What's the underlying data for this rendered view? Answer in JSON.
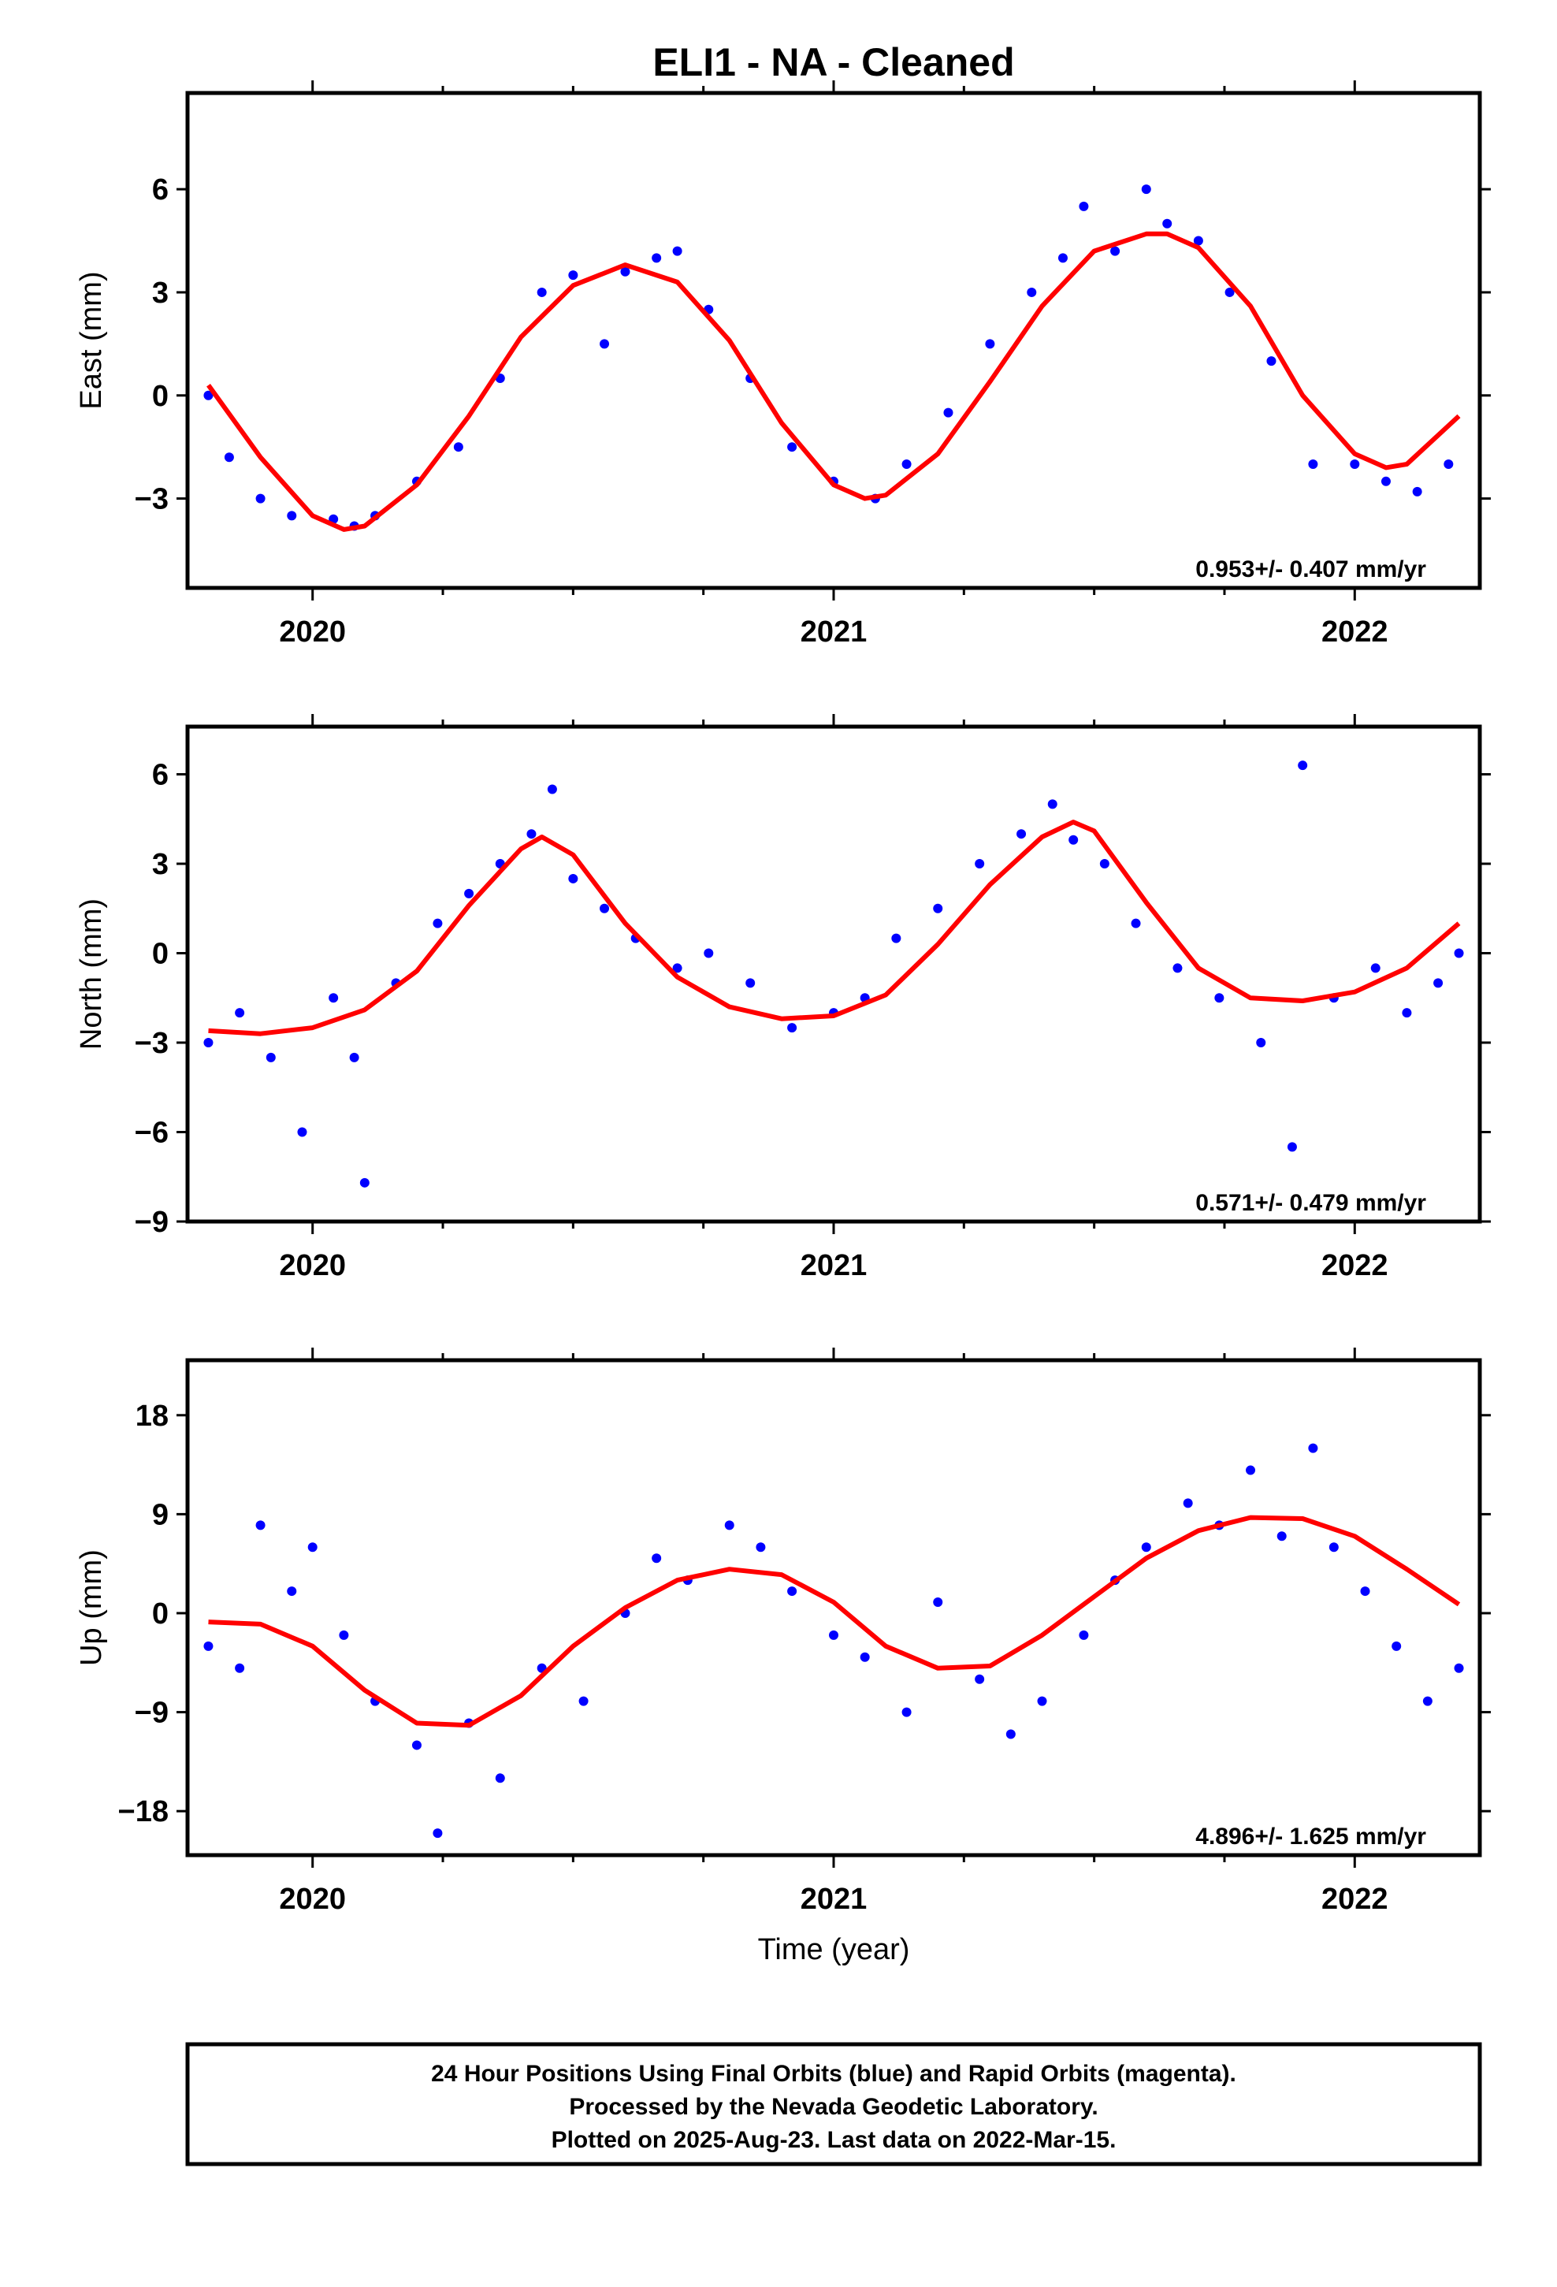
{
  "title": "ELI1  - NA - Cleaned",
  "xlabel": "Time (year)",
  "caption": [
    "24 Hour Positions Using Final Orbits (blue) and Rapid Orbits (magenta).",
    "Processed by the Nevada Geodetic Laboratory.",
    "Plotted on 2025-Aug-23. Last data on 2022-Mar-15."
  ],
  "colors": {
    "points": "#0000ff",
    "fit": "#ff0000",
    "frame": "#000000"
  },
  "chart_data": [
    {
      "type": "scatter",
      "ylabel": "East (mm)",
      "xlim": [
        2019.76,
        2022.24
      ],
      "ylim": [
        -5.6,
        8.8
      ],
      "x_ticks": [
        2020,
        2021,
        2022
      ],
      "y_ticks": [
        -3,
        0,
        3,
        6
      ],
      "y_tick_labels": [
        "−3",
        "0",
        "3",
        "6"
      ],
      "rate_label": "0.953+/- 0.407 mm/yr",
      "series": [
        {
          "type": "scatter",
          "x": [
            2019.8,
            2019.84,
            2019.9,
            2019.96,
            2020.04,
            2020.08,
            2020.12,
            2020.2,
            2020.28,
            2020.36,
            2020.44,
            2020.5,
            2020.56,
            2020.6,
            2020.66,
            2020.7,
            2020.76,
            2020.84,
            2020.92,
            2021.0,
            2021.08,
            2021.14,
            2021.22,
            2021.3,
            2021.38,
            2021.44,
            2021.48,
            2021.54,
            2021.6,
            2021.64,
            2021.7,
            2021.76,
            2021.84,
            2021.92,
            2022.0,
            2022.06,
            2022.12,
            2022.18
          ],
          "y": [
            0.0,
            -1.8,
            -3.0,
            -3.5,
            -3.6,
            -3.8,
            -3.5,
            -2.5,
            -1.5,
            0.5,
            3.0,
            3.5,
            1.5,
            3.6,
            4.0,
            4.2,
            2.5,
            0.5,
            -1.5,
            -2.5,
            -3.0,
            -2.0,
            -0.5,
            1.5,
            3.0,
            4.0,
            5.5,
            4.2,
            6.0,
            5.0,
            4.5,
            3.0,
            1.0,
            -2.0,
            -2.0,
            -2.5,
            -2.8,
            -2.0
          ]
        },
        {
          "type": "line",
          "x": [
            2019.8,
            2019.9,
            2020.0,
            2020.06,
            2020.1,
            2020.2,
            2020.3,
            2020.4,
            2020.5,
            2020.6,
            2020.7,
            2020.8,
            2020.9,
            2021.0,
            2021.06,
            2021.1,
            2021.2,
            2021.3,
            2021.4,
            2021.5,
            2021.6,
            2021.64,
            2021.7,
            2021.8,
            2021.9,
            2022.0,
            2022.06,
            2022.1,
            2022.2
          ],
          "y": [
            0.3,
            -1.8,
            -3.5,
            -3.9,
            -3.8,
            -2.6,
            -0.6,
            1.7,
            3.2,
            3.8,
            3.3,
            1.6,
            -0.8,
            -2.6,
            -3.0,
            -2.9,
            -1.7,
            0.4,
            2.6,
            4.2,
            4.7,
            4.7,
            4.3,
            2.6,
            0.0,
            -1.7,
            -2.1,
            -2.0,
            -0.6
          ]
        }
      ]
    },
    {
      "type": "scatter",
      "ylabel": "North (mm)",
      "xlim": [
        2019.76,
        2022.24
      ],
      "ylim": [
        -9,
        7.6
      ],
      "x_ticks": [
        2020,
        2021,
        2022
      ],
      "y_ticks": [
        -9,
        -6,
        -3,
        0,
        3,
        6
      ],
      "y_tick_labels": [
        "−9",
        "−6",
        "−3",
        "0",
        "3",
        "6"
      ],
      "rate_label": "0.571+/- 0.479 mm/yr",
      "series": [
        {
          "type": "scatter",
          "x": [
            2019.8,
            2019.86,
            2019.92,
            2019.98,
            2020.04,
            2020.08,
            2020.1,
            2020.16,
            2020.24,
            2020.3,
            2020.36,
            2020.42,
            2020.46,
            2020.5,
            2020.56,
            2020.62,
            2020.7,
            2020.76,
            2020.84,
            2020.92,
            2021.0,
            2021.06,
            2021.12,
            2021.2,
            2021.28,
            2021.36,
            2021.42,
            2021.46,
            2021.52,
            2021.58,
            2021.66,
            2021.74,
            2021.82,
            2021.88,
            2021.9,
            2021.96,
            2022.04,
            2022.1,
            2022.16,
            2022.2
          ],
          "y": [
            -3.0,
            -2.0,
            -3.5,
            -6.0,
            -1.5,
            -3.5,
            -7.7,
            -1.0,
            1.0,
            2.0,
            3.0,
            4.0,
            5.5,
            2.5,
            1.5,
            0.5,
            -0.5,
            0.0,
            -1.0,
            -2.5,
            -2.0,
            -1.5,
            0.5,
            1.5,
            3.0,
            4.0,
            5.0,
            3.8,
            3.0,
            1.0,
            -0.5,
            -1.5,
            -3.0,
            -6.5,
            6.3,
            -1.5,
            -0.5,
            -2.0,
            -1.0,
            0.0
          ]
        },
        {
          "type": "line",
          "x": [
            2019.8,
            2019.9,
            2020.0,
            2020.1,
            2020.2,
            2020.3,
            2020.4,
            2020.44,
            2020.5,
            2020.6,
            2020.7,
            2020.8,
            2020.9,
            2021.0,
            2021.1,
            2021.2,
            2021.3,
            2021.4,
            2021.46,
            2021.5,
            2021.6,
            2021.7,
            2021.8,
            2021.9,
            2022.0,
            2022.1,
            2022.2
          ],
          "y": [
            -2.6,
            -2.7,
            -2.5,
            -1.9,
            -0.6,
            1.6,
            3.5,
            3.9,
            3.3,
            1.0,
            -0.8,
            -1.8,
            -2.2,
            -2.1,
            -1.4,
            0.3,
            2.3,
            3.9,
            4.4,
            4.1,
            1.7,
            -0.5,
            -1.5,
            -1.6,
            -1.3,
            -0.5,
            1.0
          ]
        }
      ]
    },
    {
      "type": "scatter",
      "ylabel": "Up (mm)",
      "xlim": [
        2019.76,
        2022.24
      ],
      "ylim": [
        -22,
        23
      ],
      "x_ticks": [
        2020,
        2021,
        2022
      ],
      "y_ticks": [
        -18,
        -9,
        0,
        9,
        18
      ],
      "y_tick_labels": [
        "−18",
        "−9",
        "0",
        "9",
        "18"
      ],
      "rate_label": "4.896+/- 1.625 mm/yr",
      "series": [
        {
          "type": "scatter",
          "x": [
            2019.8,
            2019.86,
            2019.9,
            2019.96,
            2020.0,
            2020.06,
            2020.12,
            2020.2,
            2020.24,
            2020.3,
            2020.36,
            2020.44,
            2020.52,
            2020.6,
            2020.66,
            2020.72,
            2020.8,
            2020.86,
            2020.92,
            2021.0,
            2021.06,
            2021.14,
            2021.2,
            2021.28,
            2021.34,
            2021.4,
            2021.48,
            2021.54,
            2021.6,
            2021.68,
            2021.74,
            2021.8,
            2021.86,
            2021.92,
            2021.96,
            2022.02,
            2022.08,
            2022.14,
            2022.2
          ],
          "y": [
            -3.0,
            -5.0,
            8.0,
            2.0,
            6.0,
            -2.0,
            -8.0,
            -12.0,
            -20.0,
            -10.0,
            -15.0,
            -5.0,
            -8.0,
            0.0,
            5.0,
            3.0,
            8.0,
            6.0,
            2.0,
            -2.0,
            -4.0,
            -9.0,
            1.0,
            -6.0,
            -11.0,
            -8.0,
            -2.0,
            3.0,
            6.0,
            10.0,
            8.0,
            13.0,
            7.0,
            15.0,
            6.0,
            2.0,
            -3.0,
            -8.0,
            -5.0
          ]
        },
        {
          "type": "line",
          "x": [
            2019.8,
            2019.9,
            2020.0,
            2020.1,
            2020.2,
            2020.3,
            2020.4,
            2020.5,
            2020.6,
            2020.7,
            2020.8,
            2020.9,
            2021.0,
            2021.1,
            2021.2,
            2021.3,
            2021.4,
            2021.5,
            2021.6,
            2021.7,
            2021.8,
            2021.9,
            2022.0,
            2022.1,
            2022.2
          ],
          "y": [
            -0.8,
            -1.0,
            -3.0,
            -7.0,
            -10.0,
            -10.2,
            -7.5,
            -3.0,
            0.5,
            3.0,
            4.0,
            3.5,
            1.0,
            -3.0,
            -5.0,
            -4.8,
            -2.0,
            1.5,
            5.0,
            7.5,
            8.7,
            8.6,
            7.0,
            4.0,
            0.8
          ]
        }
      ]
    }
  ]
}
